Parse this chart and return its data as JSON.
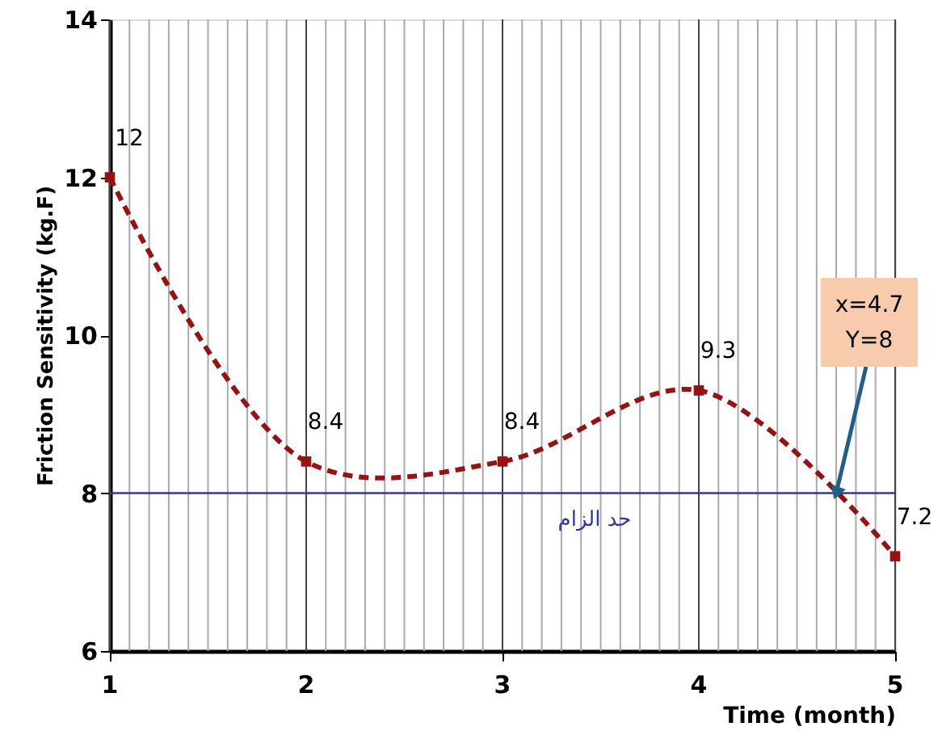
{
  "chart_data": {
    "type": "line",
    "xlabel": "Time (month)",
    "ylabel": "Friction Sensitivity (kg.F)",
    "x": [
      1,
      2,
      3,
      4,
      5
    ],
    "series": [
      {
        "color": "#991111",
        "values": [
          12,
          8.4,
          8.4,
          9.3,
          7.2
        ]
      }
    ],
    "data_labels": true,
    "marker": "square",
    "line_style": "dashed",
    "grid": "x",
    "xlim": [
      1,
      5
    ],
    "ylim": [
      6,
      14
    ],
    "yticks": [
      6,
      8,
      10,
      12,
      14
    ],
    "xticks": [
      1,
      {
        "value": 1.1,
        "label": null
      },
      {
        "value": 1.2,
        "label": null
      },
      {
        "value": 1.3,
        "label": null
      },
      {
        "value": 1.4,
        "label": null
      },
      {
        "value": 1.5,
        "label": null
      },
      {
        "value": 1.6,
        "label": null
      },
      {
        "value": 1.7,
        "label": null
      },
      {
        "value": 1.8,
        "label": null
      },
      {
        "value": 1.9,
        "label": null
      },
      2,
      {
        "value": 2.1,
        "label": null
      },
      {
        "value": 2.2,
        "label": null
      },
      {
        "value": 2.3,
        "label": null
      },
      {
        "value": 2.4,
        "label": null
      },
      {
        "value": 2.5,
        "label": null
      },
      {
        "value": 2.6,
        "label": null
      },
      {
        "value": 2.7,
        "label": null
      },
      {
        "value": 2.8,
        "label": null
      },
      {
        "value": 2.9,
        "label": null
      },
      3,
      {
        "value": 3.1,
        "label": null
      },
      {
        "value": 3.2,
        "label": null
      },
      {
        "value": 3.3,
        "label": null
      },
      {
        "value": 3.4,
        "label": null
      },
      {
        "value": 3.5,
        "label": null
      },
      {
        "value": 3.6,
        "label": null
      },
      {
        "value": 3.7,
        "label": null
      },
      {
        "value": 3.8,
        "label": null
      },
      {
        "value": 3.9,
        "label": null
      },
      4,
      {
        "value": 4.1,
        "label": null
      },
      {
        "value": 4.2,
        "label": null
      },
      {
        "value": 4.3,
        "label": null
      },
      {
        "value": 4.4,
        "label": null
      },
      {
        "value": 4.5,
        "label": null
      },
      {
        "value": 4.6,
        "label": null
      },
      {
        "value": 4.7,
        "label": null
      },
      {
        "value": 4.8,
        "label": null
      },
      {
        "value": 4.9,
        "label": null
      },
      5
    ],
    "ref_lines": [
      {
        "axis": "y",
        "value": 8,
        "label": "حد الزام",
        "color": "#3333aa"
      }
    ],
    "annotations": [
      {
        "text": "x=4.7\nY=8",
        "x": 4.7,
        "y": 8
      }
    ]
  }
}
